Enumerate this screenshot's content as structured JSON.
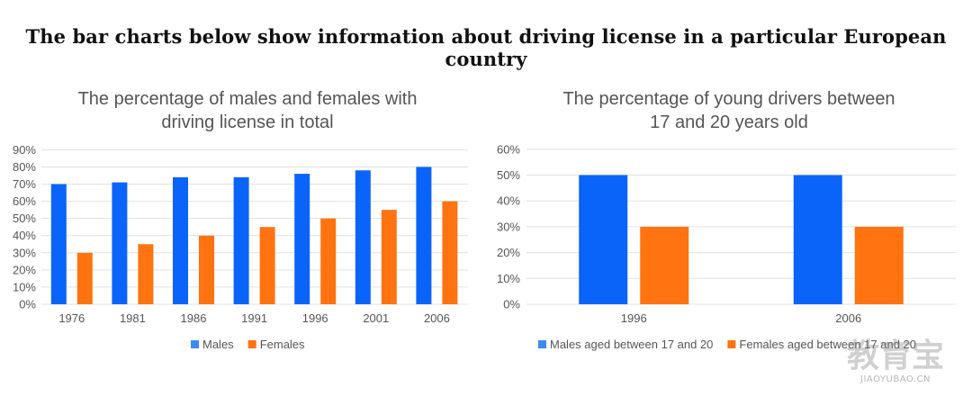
{
  "page_title": "The bar charts below show information about driving license in a particular European country",
  "colors": {
    "males": "#0A64FA",
    "females": "#FF7310",
    "legend_males": "#3D8BF0",
    "legend_females": "#FF7310",
    "grid": "#E0E0E0"
  },
  "chart_data": [
    {
      "type": "bar",
      "title_line1": "The percentage of  males and females with",
      "title_line2": "driving license in total",
      "categories": [
        "1976",
        "1981",
        "1986",
        "1991",
        "1996",
        "2001",
        "2006"
      ],
      "series": [
        {
          "name": "Males",
          "values": [
            70,
            71,
            74,
            74,
            76,
            78,
            80
          ]
        },
        {
          "name": "Females",
          "values": [
            30,
            35,
            40,
            45,
            50,
            55,
            60
          ]
        }
      ],
      "ylim": [
        0,
        90
      ],
      "yticks": [
        "0%",
        "10%",
        "20%",
        "30%",
        "40%",
        "50%",
        "60%",
        "70%",
        "80%",
        "90%"
      ],
      "grid": true,
      "legend_position": "bottom"
    },
    {
      "type": "bar",
      "title_line1": "The percentage of young drivers between",
      "title_line2": "17 and 20 years old",
      "categories": [
        "1996",
        "2006"
      ],
      "series": [
        {
          "name": "Males aged between 17 and 20",
          "values": [
            50,
            50
          ]
        },
        {
          "name": "Females aged between 17 and 20",
          "values": [
            30,
            30
          ]
        }
      ],
      "ylim": [
        0,
        60
      ],
      "yticks": [
        "0%",
        "10%",
        "20%",
        "30%",
        "40%",
        "50%",
        "60%"
      ],
      "grid": true,
      "legend_position": "bottom"
    }
  ],
  "watermark": {
    "main": "教育宝",
    "sub": "JIAOYUBAO.CN"
  }
}
